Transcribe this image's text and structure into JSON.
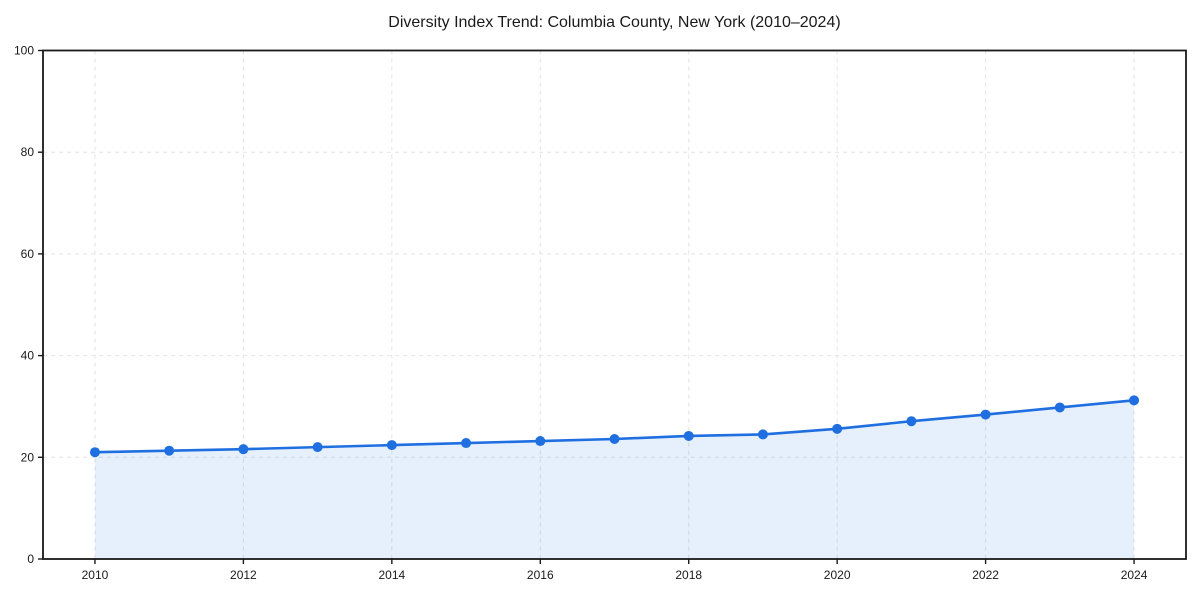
{
  "chart_data": {
    "type": "line",
    "title": "Diversity Index Trend: Columbia County, New York (2010–2024)",
    "series_name": "Diversity Index",
    "x": [
      2010,
      2011,
      2012,
      2013,
      2014,
      2015,
      2016,
      2017,
      2018,
      2019,
      2020,
      2021,
      2022,
      2023,
      2024
    ],
    "values": [
      21.0,
      21.3,
      21.6,
      22.0,
      22.4,
      22.8,
      23.2,
      23.6,
      24.2,
      24.5,
      25.6,
      27.1,
      28.4,
      29.8,
      31.2
    ],
    "xlabel": "",
    "ylabel": "",
    "xlim": [
      2009.3,
      2024.7
    ],
    "ylim": [
      0,
      100
    ],
    "xticks": [
      2010,
      2012,
      2014,
      2016,
      2018,
      2020,
      2022,
      2024
    ],
    "yticks": [
      0,
      20,
      40,
      60,
      80,
      100
    ],
    "grid": "dashed-both-axes",
    "legend": "none",
    "area_fill": true,
    "markers": "circle",
    "colors": {
      "line": "#1f6fe0",
      "marker": "#1f6fe0",
      "area_fill": "rgba(31,111,224,0.11)",
      "grid": "#e4e4e4",
      "spine": "#1a1a1a",
      "text": "#1a1a1a",
      "background": "#ffffff"
    }
  }
}
